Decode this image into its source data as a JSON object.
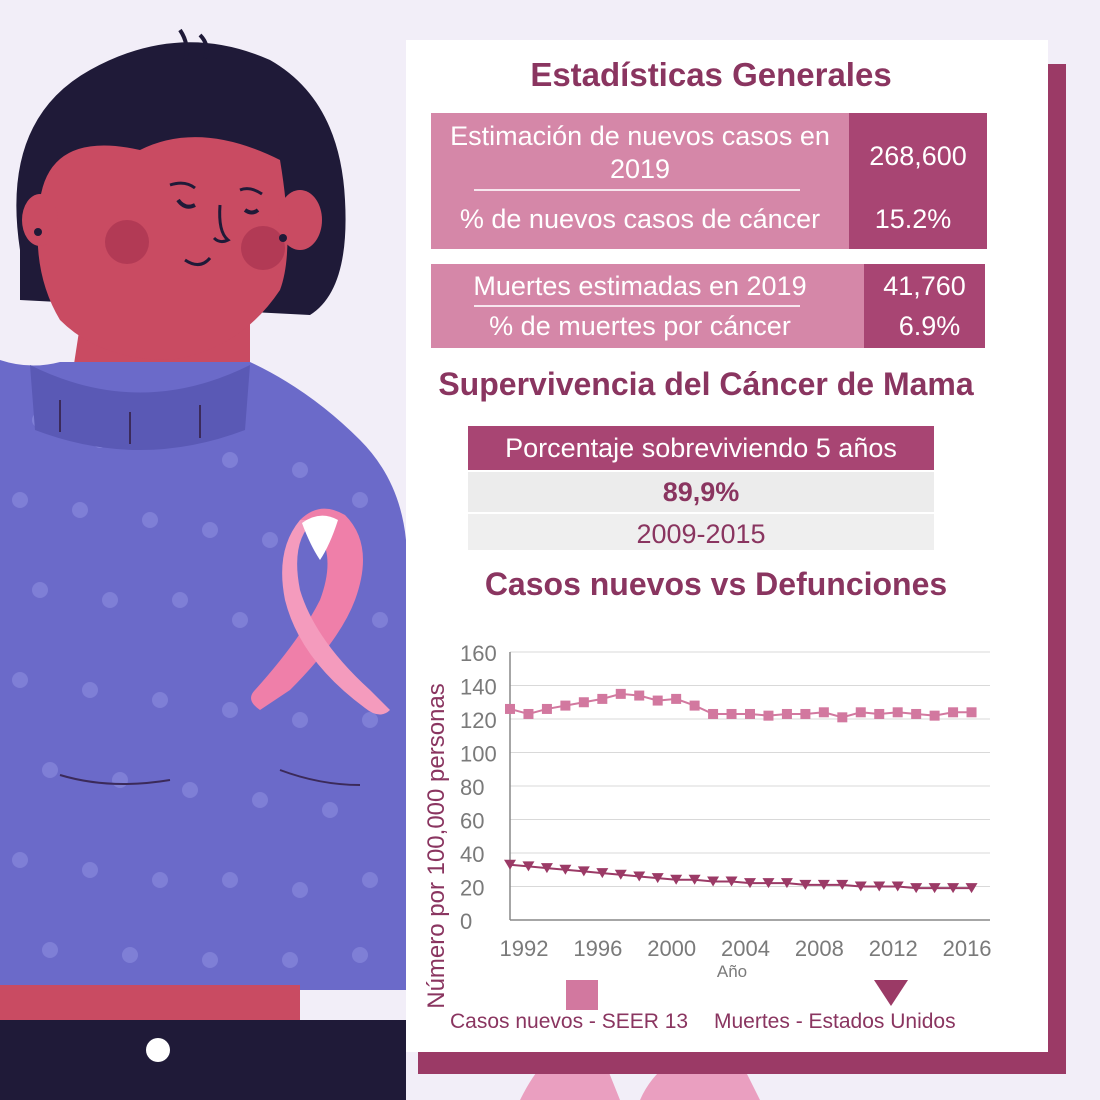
{
  "stats_title": "Estadísticas Generales",
  "new_cases": {
    "label": "Estimación de nuevos casos en 2019",
    "value": "268,600",
    "pct_label": "% de nuevos casos de cáncer",
    "pct_value": "15.2%"
  },
  "deaths": {
    "label": "Muertes estimadas en 2019",
    "value": "41,760",
    "pct_label": "% de muertes por cáncer",
    "pct_value": "6.9%"
  },
  "survival": {
    "title": "Supervivencia del Cáncer de Mama",
    "header": "Porcentaje sobreviviendo 5 años",
    "value": "89,9%",
    "period": "2009-2015"
  },
  "colors": {
    "accent": "#8a3560",
    "cases_series": "#d2789f",
    "deaths_series": "#9b3a66",
    "sweater": "#6b6ac9",
    "ribbon": "#ef7fa9"
  },
  "chart_data": {
    "type": "line",
    "title": "Casos nuevos vs Defunciones",
    "xlabel": "Año",
    "ylabel": "Número por 100,000 personas",
    "xlim": [
      1992,
      2018
    ],
    "ylim": [
      0,
      160
    ],
    "y_ticks": [
      160,
      140,
      120,
      100,
      80,
      60,
      40,
      20,
      0
    ],
    "x_ticks": [
      1992,
      1996,
      2000,
      2004,
      2008,
      2012,
      2016
    ],
    "grid": true,
    "legend_position": "bottom",
    "x": [
      1992,
      1993,
      1994,
      1995,
      1996,
      1997,
      1998,
      1999,
      2000,
      2001,
      2002,
      2003,
      2004,
      2005,
      2006,
      2007,
      2008,
      2009,
      2010,
      2011,
      2012,
      2013,
      2014,
      2015,
      2016,
      2017
    ],
    "series": [
      {
        "name": "Casos nuevos - SEER 13",
        "marker": "square",
        "values": [
          126,
          123,
          126,
          128,
          130,
          132,
          135,
          134,
          131,
          132,
          128,
          123,
          123,
          123,
          122,
          123,
          123,
          124,
          121,
          124,
          123,
          124,
          123,
          122,
          124,
          124
        ]
      },
      {
        "name": "Muertes - Estados Unidos",
        "marker": "triangle-down",
        "values": [
          33,
          32,
          31,
          30,
          29,
          28,
          27,
          26,
          25,
          24,
          24,
          23,
          23,
          22,
          22,
          22,
          21,
          21,
          21,
          20,
          20,
          20,
          19,
          19,
          19,
          19
        ]
      }
    ]
  }
}
